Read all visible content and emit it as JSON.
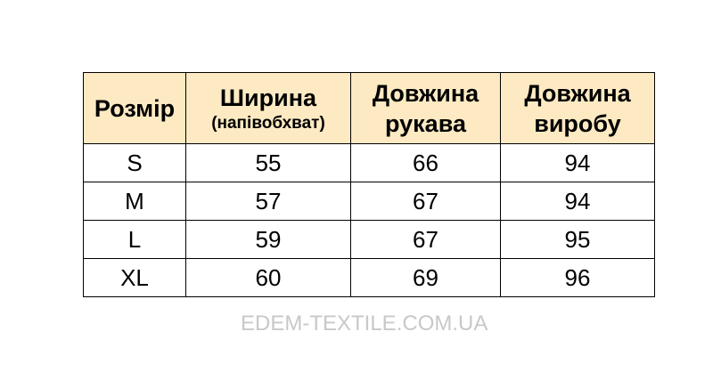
{
  "table": {
    "headers": [
      {
        "title": "Розмір",
        "subtitle": ""
      },
      {
        "title": "Ширина",
        "subtitle": "(напівобхват)"
      },
      {
        "title": "Довжина",
        "subtitle": "рукава"
      },
      {
        "title": "Довжина",
        "subtitle": "виробу"
      }
    ],
    "rows": [
      [
        "S",
        "55",
        "66",
        "94"
      ],
      [
        "M",
        "57",
        "67",
        "94"
      ],
      [
        "L",
        "59",
        "67",
        "95"
      ],
      [
        "XL",
        "60",
        "69",
        "96"
      ]
    ],
    "header_bg": "#fdeac3"
  },
  "watermark": "EDEM-TEXTILE.COM.UA"
}
